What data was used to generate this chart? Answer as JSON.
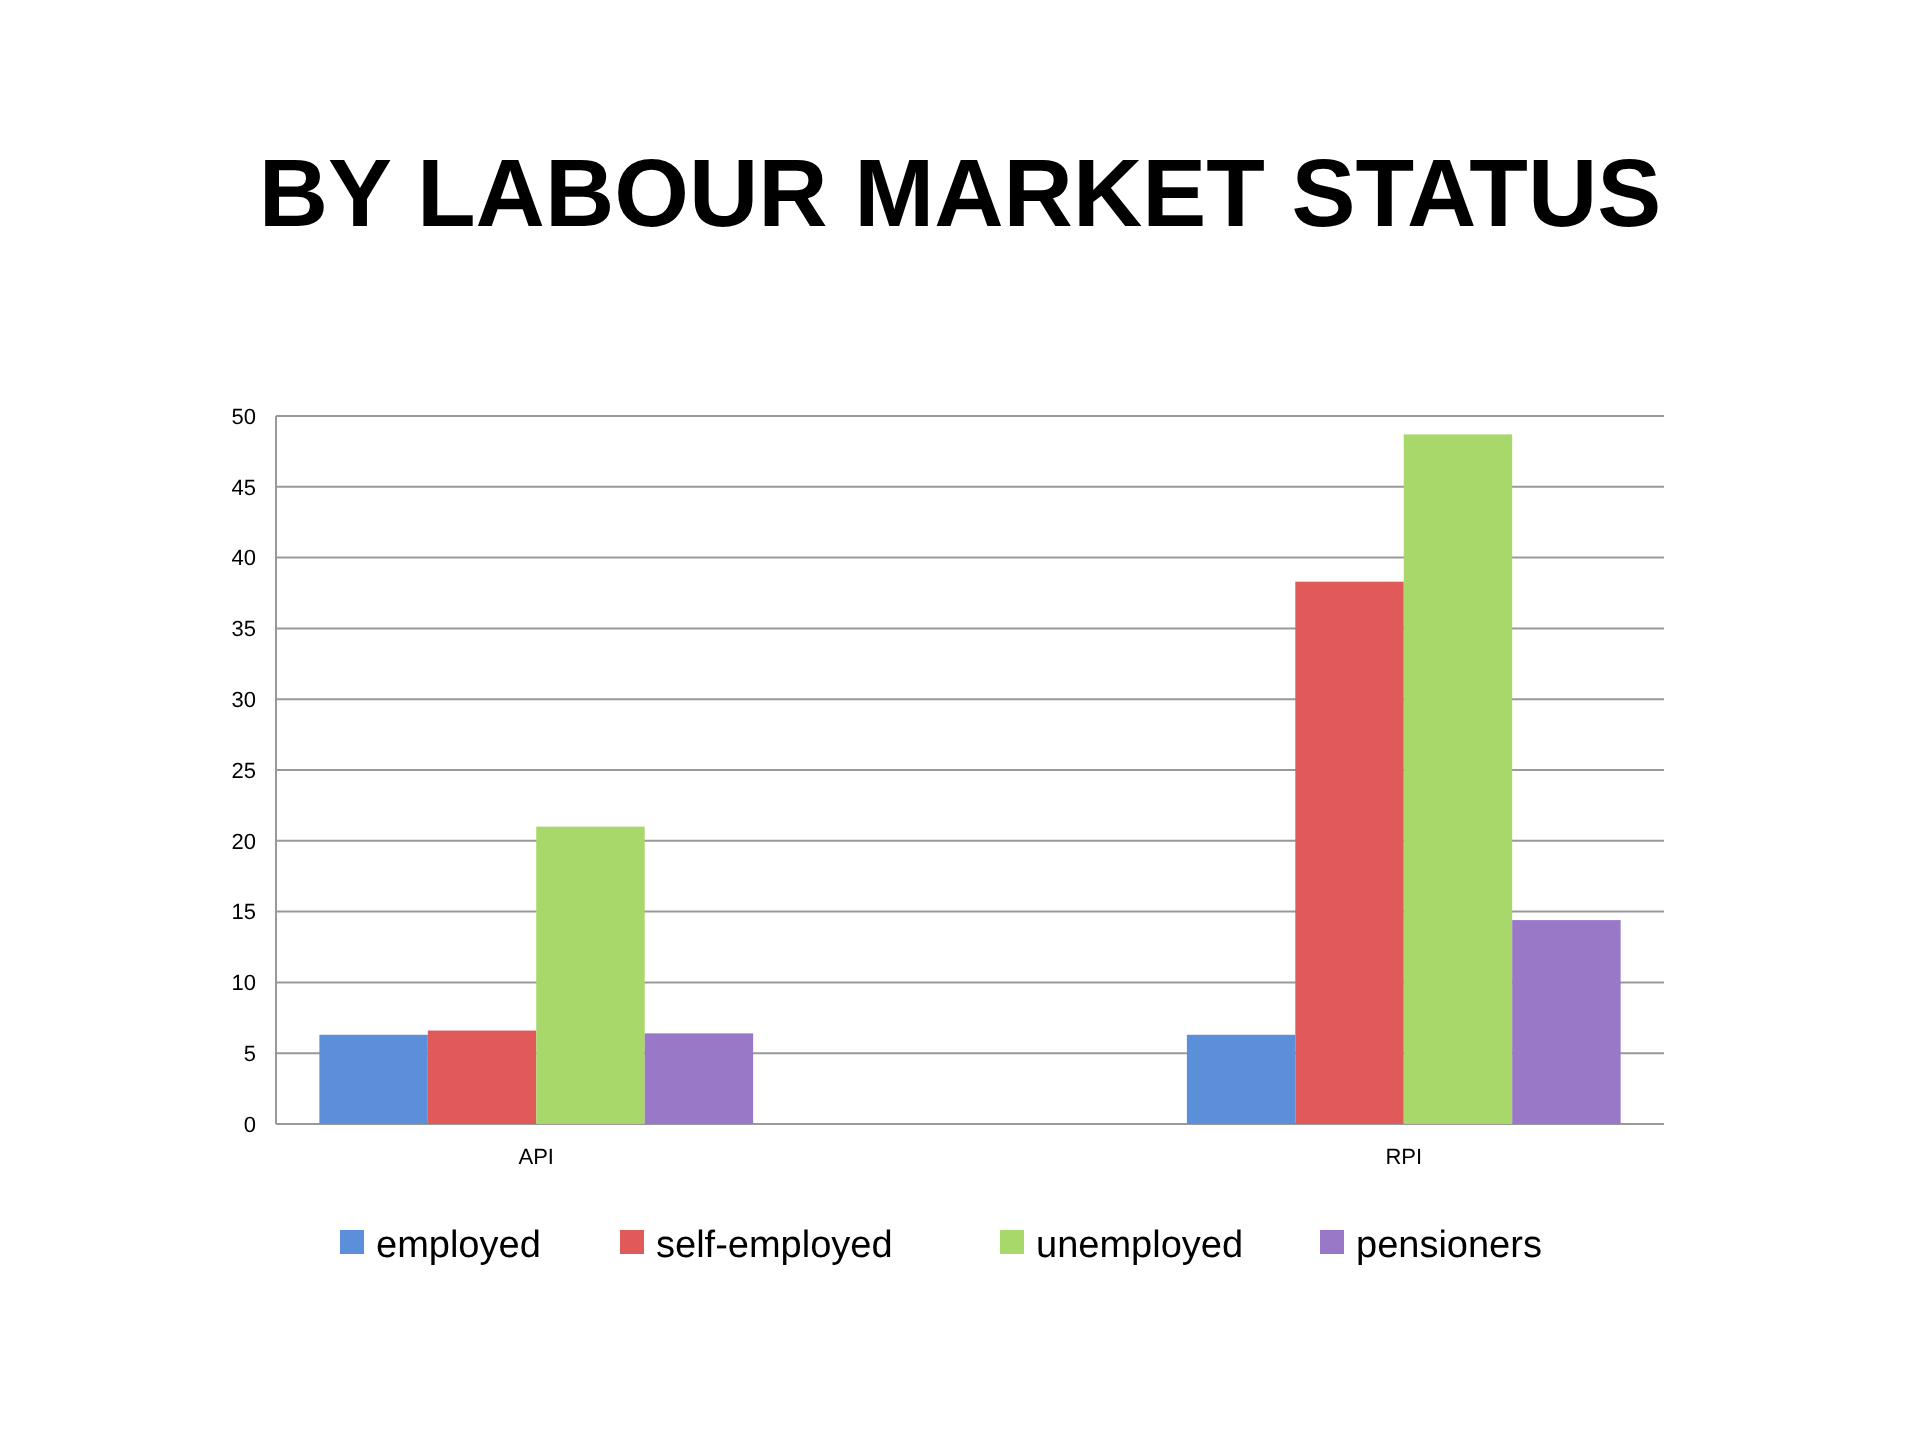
{
  "chart_data": {
    "type": "bar",
    "title": "BY LABOUR MARKET STATUS",
    "categories": [
      "API",
      "RPI"
    ],
    "series": [
      {
        "name": "employed",
        "color": "#5b8fd9",
        "values": [
          6.3,
          6.3
        ]
      },
      {
        "name": "self-employed",
        "color": "#e05a5a",
        "values": [
          6.6,
          38.3
        ]
      },
      {
        "name": "unemployed",
        "color": "#a9d86a",
        "values": [
          21,
          48.7
        ]
      },
      {
        "name": "pensioners",
        "color": "#9a78c8",
        "values": [
          6.4,
          14.4
        ]
      }
    ],
    "ylim": [
      0,
      50
    ],
    "yticks": [
      0,
      5,
      10,
      15,
      20,
      25,
      30,
      35,
      40,
      45,
      50
    ],
    "grid": "y",
    "legend": "bottom"
  }
}
